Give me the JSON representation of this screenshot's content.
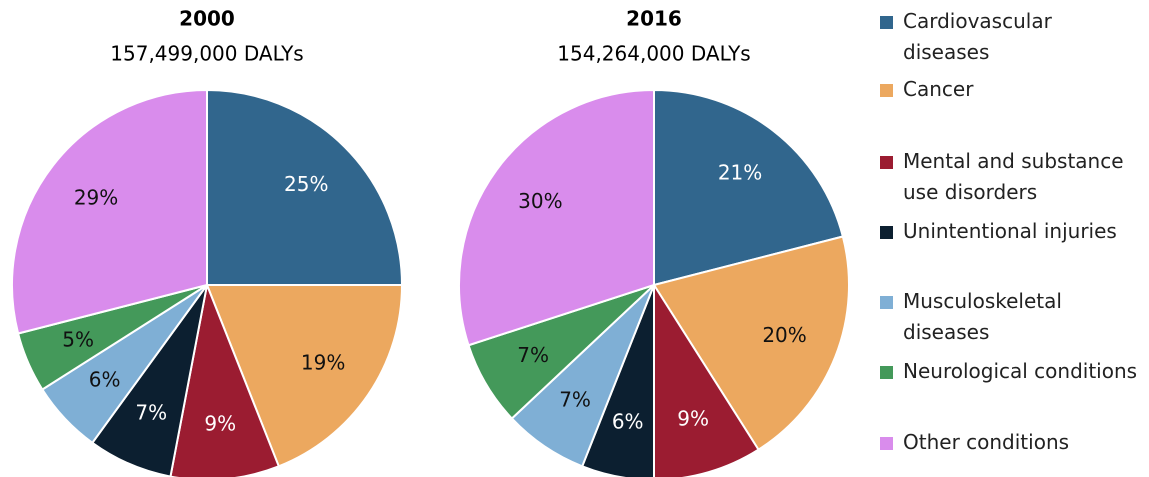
{
  "chart_data": [
    {
      "type": "pie",
      "title": "2000",
      "subtitle": "157,499,000 DALYs",
      "categories": [
        "Cardiovascular diseases",
        "Cancer",
        "Mental and substance use disorders",
        "Unintentional injuries",
        "Musculoskeletal diseases",
        "Neurological conditions",
        "Other conditions"
      ],
      "values": [
        25,
        19,
        9,
        7,
        6,
        5,
        29
      ],
      "value_labels": [
        "25%",
        "19%",
        "9%",
        "7%",
        "6%",
        "5%",
        "29%"
      ],
      "colors": [
        "#31668d",
        "#eca85f",
        "#9b1c31",
        "#0c1f30",
        "#7fafd5",
        "#44995a",
        "#d98cec"
      ]
    },
    {
      "type": "pie",
      "title": "2016",
      "subtitle": "154,264,000 DALYs",
      "categories": [
        "Cardiovascular diseases",
        "Cancer",
        "Mental and substance use disorders",
        "Unintentional injuries",
        "Musculoskeletal diseases",
        "Neurological conditions",
        "Other conditions"
      ],
      "values": [
        21,
        20,
        9,
        6,
        7,
        7,
        30
      ],
      "value_labels": [
        "21%",
        "20%",
        "9%",
        "6%",
        "7%",
        "7%",
        "30%"
      ],
      "colors": [
        "#31668d",
        "#eca85f",
        "#9b1c31",
        "#0c1f30",
        "#7fafd5",
        "#44995a",
        "#d98cec"
      ]
    }
  ]
}
